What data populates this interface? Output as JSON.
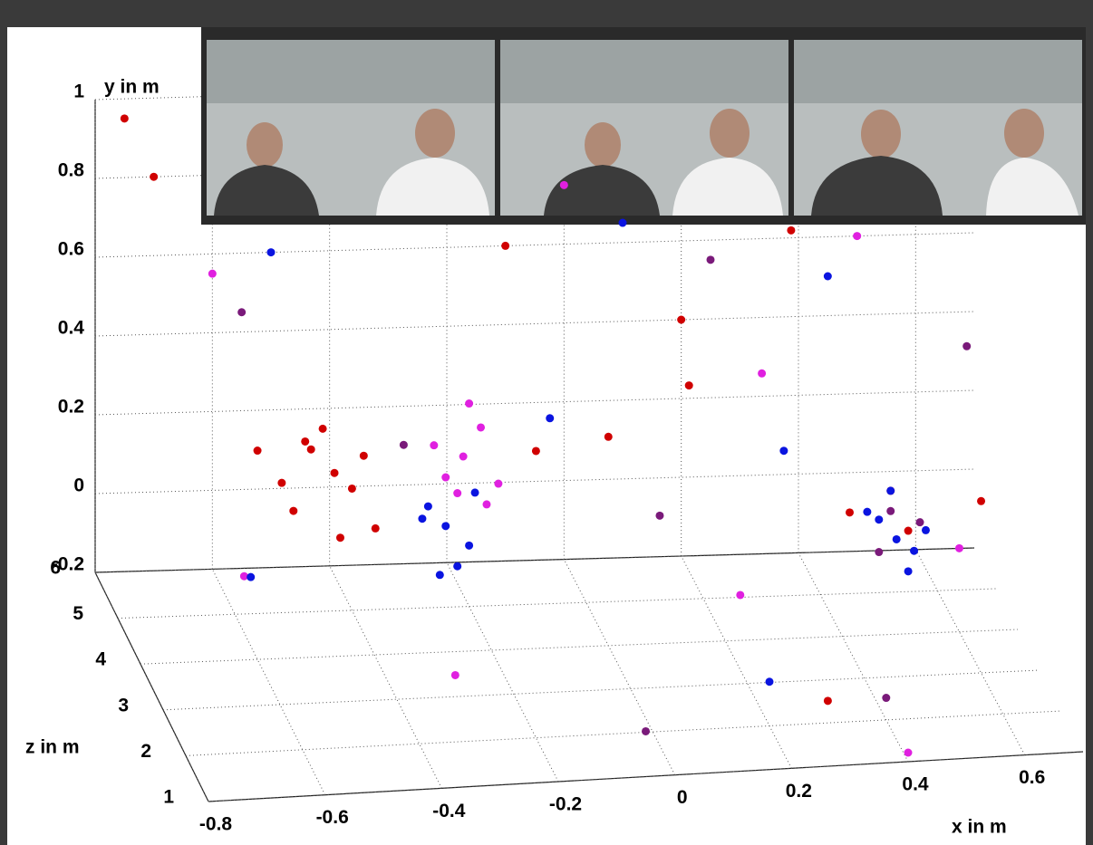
{
  "chart_data": {
    "type": "scatter3d",
    "xlabel": "x in m",
    "ylabel": "y in m",
    "zlabel": "z in m",
    "xlim": [
      -0.8,
      0.7
    ],
    "ylim": [
      -0.2,
      1
    ],
    "zlim": [
      1,
      6
    ],
    "xticks": [
      -0.8,
      -0.6,
      -0.4,
      -0.2,
      0,
      0.2,
      0.4,
      0.6
    ],
    "yticks": [
      -0.2,
      0,
      0.2,
      0.4,
      0.6,
      0.8,
      1
    ],
    "zticks": [
      1,
      2,
      3,
      4,
      5,
      6
    ],
    "grid": true,
    "series": [
      {
        "color": "#d00000",
        "x": [
          -0.43,
          -0.47,
          -0.4,
          -0.5,
          -0.38,
          -0.45,
          -0.52,
          -0.36,
          -0.42,
          -0.48,
          -0.7,
          -0.1,
          0.2,
          0.45,
          0.55,
          0.52,
          -0.6,
          0.1,
          0.35,
          -0.2,
          0.3,
          0.6,
          -0.75,
          0.0
        ],
        "y": [
          0.14,
          0.2,
          0.1,
          0.05,
          0.18,
          0.25,
          0.12,
          0.0,
          -0.02,
          0.22,
          0.8,
          0.6,
          0.4,
          0.0,
          -0.05,
          0.05,
          0.3,
          0.5,
          0.7,
          0.45,
          -0.15,
          0.2,
          0.95,
          0.3
        ],
        "z": [
          5,
          5,
          5,
          5,
          5,
          5,
          5,
          5,
          5,
          5,
          6,
          6,
          6,
          5,
          5,
          5,
          4,
          3,
          5,
          2,
          2,
          3,
          6,
          4
        ]
      },
      {
        "color": "#e020e0",
        "x": [
          -0.21,
          -0.18,
          -0.24,
          -0.15,
          -0.2,
          -0.26,
          -0.17,
          -0.22,
          -0.6,
          0.0,
          0.3,
          0.5,
          -0.3,
          0.15,
          0.6,
          -0.7,
          0.4
        ],
        "y": [
          0.17,
          0.24,
          0.12,
          0.1,
          0.3,
          0.2,
          0.05,
          0.08,
          0.55,
          0.75,
          0.35,
          0.6,
          -0.15,
          0.1,
          0.0,
          0.2,
          -0.18
        ],
        "z": [
          5,
          5,
          5,
          5,
          5,
          5,
          5,
          5,
          6,
          6,
          5,
          6,
          3,
          2,
          4,
          2,
          1
        ]
      },
      {
        "color": "#0a14e0",
        "x": [
          -0.24,
          -0.27,
          -0.2,
          -0.22,
          -0.28,
          -0.19,
          -0.25,
          0.53,
          0.5,
          0.56,
          0.48,
          0.58,
          0.52,
          0.55,
          -0.5,
          0.1,
          0.3,
          -0.65,
          0.2,
          0.45,
          -0.1
        ],
        "y": [
          0.0,
          0.05,
          -0.05,
          -0.1,
          0.02,
          0.08,
          -0.12,
          -0.07,
          -0.02,
          -0.1,
          0.0,
          -0.05,
          0.05,
          -0.15,
          0.6,
          0.65,
          0.25,
          0.1,
          -0.1,
          0.5,
          0.35
        ],
        "z": [
          5,
          5,
          5,
          5,
          5,
          5,
          5,
          5,
          5,
          5,
          5,
          5,
          5,
          5,
          6,
          6,
          4,
          3,
          2,
          6,
          4
        ]
      },
      {
        "color": "#7a1a7a",
        "x": [
          0.52,
          0.5,
          0.57,
          -0.55,
          0.05,
          0.25,
          -0.35,
          0.4,
          -0.05,
          0.65
        ],
        "y": [
          0.0,
          -0.1,
          -0.03,
          0.45,
          0.2,
          0.55,
          0.3,
          -0.15,
          -0.1,
          0.4
        ],
        "z": [
          5,
          5,
          5,
          6,
          3,
          6,
          4,
          2,
          1,
          5
        ]
      }
    ]
  }
}
